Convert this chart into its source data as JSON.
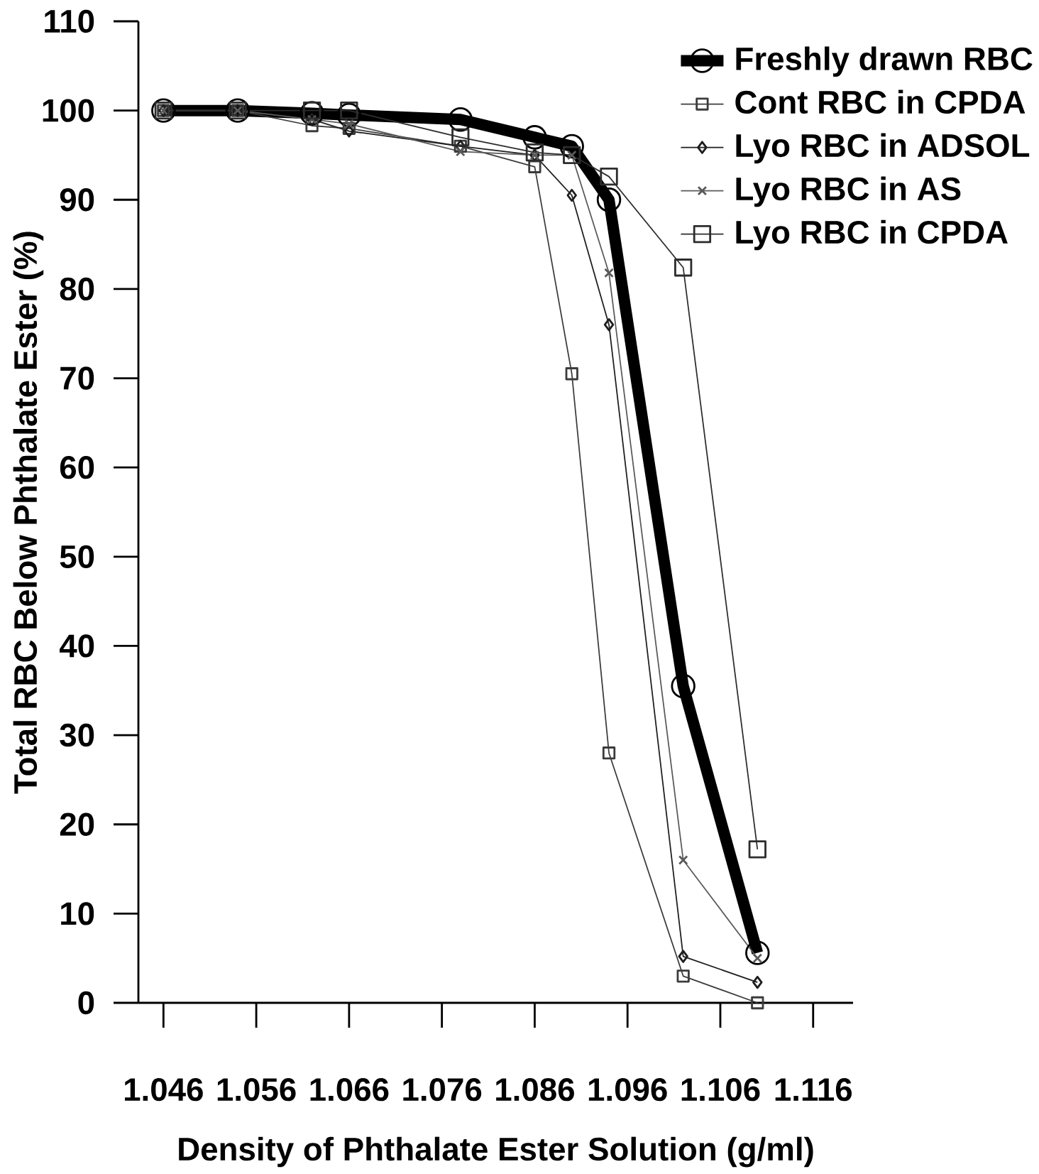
{
  "chart_data": {
    "type": "line",
    "xlabel": "Density of Phthalate Ester Solution (g/ml)",
    "ylabel": "Total RBC Below Phthalate Ester (%)",
    "x": [
      1.046,
      1.054,
      1.062,
      1.066,
      1.078,
      1.086,
      1.09,
      1.094,
      1.102,
      1.11
    ],
    "series": [
      {
        "name": "Freshly drawn RBC",
        "color": "#000000",
        "marker": "circle",
        "values": [
          100,
          100,
          99.7,
          99.5,
          99,
          97,
          96,
          90,
          35.5,
          5.6
        ]
      },
      {
        "name": "Cont RBC in CPDA",
        "color": "#3c3c3c",
        "marker": "square",
        "values": [
          100,
          100,
          98.3,
          98,
          96,
          93.7,
          70.5,
          28,
          3,
          0
        ]
      },
      {
        "name": "Lyo RBC in ADSOL",
        "color": "#1e1e1e",
        "marker": "diamond",
        "values": [
          100,
          100,
          99,
          97.7,
          96,
          95,
          90.5,
          76,
          5.2,
          2.3
        ]
      },
      {
        "name": "Lyo RBC in AS",
        "color": "#5a5a5a",
        "marker": "cross",
        "values": [
          100,
          100,
          99,
          98.5,
          95.4,
          95,
          95,
          81.8,
          16,
          5
        ]
      },
      {
        "name": "Lyo RBC in CPDA",
        "color": "#2d2d2d",
        "marker": "square",
        "values": [
          100,
          100,
          100,
          100,
          97,
          95.3,
          95,
          92.6,
          82.4,
          17.2
        ]
      }
    ],
    "xlim": [
      1.0433,
      1.1203
    ],
    "xticks": [
      1.046,
      1.056,
      1.066,
      1.076,
      1.086,
      1.096,
      1.106,
      1.116
    ],
    "ylim": [
      0,
      110
    ],
    "yticks": [
      0,
      10,
      20,
      30,
      40,
      50,
      60,
      70,
      80,
      90,
      100,
      110
    ],
    "legend": "top right",
    "grid": false,
    "line_style": "solid"
  }
}
